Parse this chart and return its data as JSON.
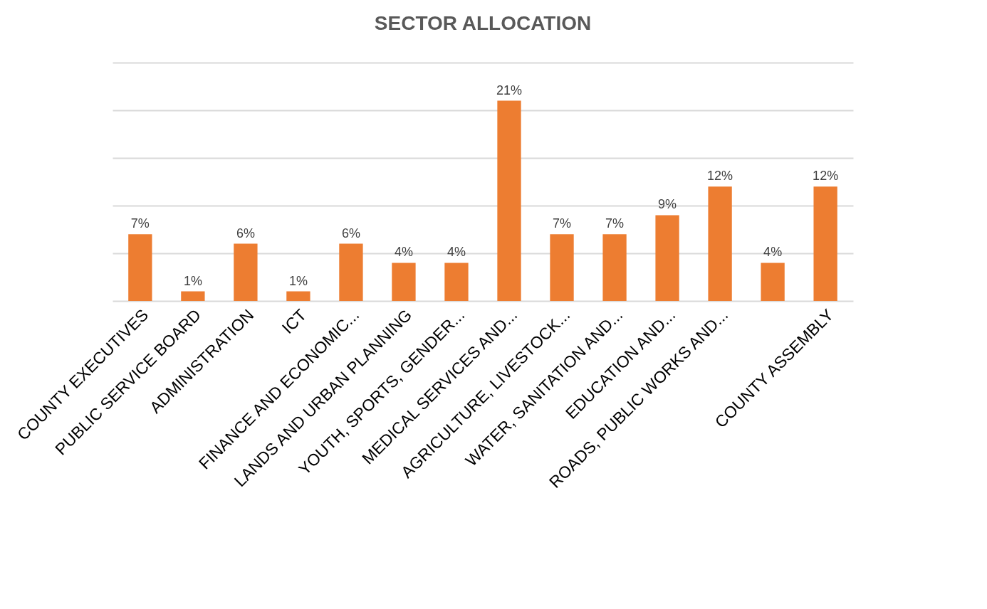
{
  "chart_data": {
    "type": "bar",
    "title": "SECTOR ALLOCATION",
    "categories": [
      "COUNTY EXECUTIVES",
      "PUBLIC SERVICE BOARD",
      "ADMINISTRATION",
      "ICT",
      "FINANCE AND ECONOMIC...",
      "LANDS AND URBAN PLANNING",
      "YOUTH, SPORTS, GENDER...",
      "MEDICAL SERVICES AND...",
      "AGRICULTURE, LIVESTOCK...",
      "WATER, SANITATION AND...",
      "EDUCATION AND...",
      "ROADS, PUBLIC WORKS AND...",
      null,
      "COUNTY ASSEMBLY"
    ],
    "values": [
      7,
      1,
      6,
      1,
      6,
      4,
      4,
      21,
      7,
      7,
      9,
      12,
      4,
      12
    ],
    "value_labels": [
      "7%",
      "1%",
      "6%",
      "1%",
      "6%",
      "4%",
      "4%",
      "21%",
      "7%",
      "7%",
      "9%",
      "12%",
      "4%",
      "12%"
    ],
    "color": "#ed7d31",
    "ylim": [
      0,
      25
    ],
    "yticks": [
      {
        "value": 0,
        "label": null
      },
      {
        "value": 5,
        "label": null
      },
      {
        "value": 10,
        "label": null
      },
      {
        "value": 15,
        "label": null
      },
      {
        "value": 20,
        "label": null
      },
      {
        "value": 25,
        "label": null
      }
    ],
    "tick_labels": "x",
    "grid": "y"
  }
}
